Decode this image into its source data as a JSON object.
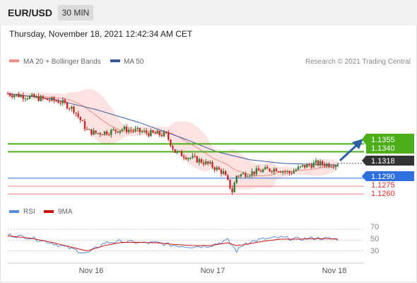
{
  "header": {
    "symbol": "EUR/USD",
    "timeframe": "30 MIN"
  },
  "timestamp": "Thursday, November 18, 2021 12:42:34 AM CET",
  "legend": [
    {
      "label": "MA 20 + Bollinger Bands",
      "color": "#f28b82"
    },
    {
      "label": "MA 50",
      "color": "#3a5a9a"
    }
  ],
  "copyright": "Research © 2021 Trading Central",
  "colors": {
    "resistance": "#4caf1a",
    "support": "#2f6fe0",
    "target": "#f08080",
    "current": "#333333",
    "up_candle": "#2e7d32",
    "down_candle": "#c62828",
    "arrow": "#2f5fa8",
    "rsi": "#5b8cd8",
    "ma9": "#cc1111",
    "band_fill": "#fde2e2"
  },
  "levels": [
    {
      "value": 1.1355,
      "label": "1.1355",
      "kind": "resistance"
    },
    {
      "value": 1.134,
      "label": "1.1340",
      "kind": "resistance"
    },
    {
      "value": 1.1318,
      "label": "1.1318",
      "kind": "current"
    },
    {
      "value": 1.129,
      "label": "1.1290",
      "kind": "support"
    },
    {
      "value": 1.1275,
      "label": "1.1275",
      "kind": "target"
    },
    {
      "value": 1.126,
      "label": "1.1260",
      "kind": "target"
    }
  ],
  "rsi_panel": {
    "legend": [
      {
        "label": "RSI",
        "color": "#5b8cd8"
      },
      {
        "label": "9MA",
        "color": "#cc1111"
      }
    ],
    "ticks": [
      "70",
      "50",
      "30"
    ]
  },
  "x_labels": [
    "Nov 16",
    "Nov 17",
    "Nov 18"
  ],
  "chart_data": {
    "type": "candlestick",
    "symbol": "EUR/USD",
    "timeframe": "30 MIN",
    "ylim": [
      1.1255,
      1.1488
    ],
    "x_ticks": [
      "Nov 16",
      "Nov 17",
      "Nov 18"
    ],
    "price_path": [
      [
        0,
        1.145
      ],
      [
        8,
        1.1445
      ],
      [
        16,
        1.144
      ],
      [
        24,
        1.1435
      ],
      [
        30,
        1.142
      ],
      [
        36,
        1.138
      ],
      [
        40,
        1.1375
      ],
      [
        46,
        1.1378
      ],
      [
        52,
        1.1383
      ],
      [
        58,
        1.138
      ],
      [
        64,
        1.1375
      ],
      [
        72,
        1.1372
      ],
      [
        76,
        1.134
      ],
      [
        82,
        1.133
      ],
      [
        88,
        1.1322
      ],
      [
        92,
        1.1315
      ],
      [
        98,
        1.13
      ],
      [
        102,
        1.1265
      ],
      [
        104,
        1.1295
      ],
      [
        110,
        1.13
      ],
      [
        116,
        1.1305
      ],
      [
        122,
        1.1308
      ],
      [
        128,
        1.13
      ],
      [
        134,
        1.1312
      ],
      [
        140,
        1.1318
      ],
      [
        146,
        1.1316
      ],
      [
        150,
        1.1318
      ]
    ],
    "ma50": [
      [
        0,
        1.145
      ],
      [
        20,
        1.144
      ],
      [
        40,
        1.142
      ],
      [
        60,
        1.1395
      ],
      [
        80,
        1.1365
      ],
      [
        95,
        1.134
      ],
      [
        110,
        1.1325
      ],
      [
        125,
        1.1318
      ],
      [
        150,
        1.1315
      ]
    ],
    "rsi_ylim": [
      15,
      85
    ],
    "rsi_ticks": [
      70,
      50,
      30
    ],
    "rsi": [
      [
        0,
        60
      ],
      [
        10,
        55
      ],
      [
        20,
        45
      ],
      [
        28,
        35
      ],
      [
        36,
        25
      ],
      [
        44,
        45
      ],
      [
        52,
        48
      ],
      [
        60,
        45
      ],
      [
        68,
        45
      ],
      [
        76,
        40
      ],
      [
        84,
        38
      ],
      [
        92,
        40
      ],
      [
        100,
        50
      ],
      [
        104,
        30
      ],
      [
        108,
        45
      ],
      [
        116,
        52
      ],
      [
        124,
        55
      ],
      [
        132,
        52
      ],
      [
        140,
        54
      ],
      [
        150,
        52
      ]
    ],
    "ma9": [
      [
        0,
        58
      ],
      [
        10,
        54
      ],
      [
        20,
        46
      ],
      [
        28,
        38
      ],
      [
        36,
        30
      ],
      [
        44,
        40
      ],
      [
        52,
        46
      ],
      [
        60,
        46
      ],
      [
        68,
        45
      ],
      [
        76,
        42
      ],
      [
        84,
        40
      ],
      [
        92,
        40
      ],
      [
        100,
        45
      ],
      [
        104,
        40
      ],
      [
        108,
        42
      ],
      [
        116,
        48
      ],
      [
        124,
        52
      ],
      [
        132,
        52
      ],
      [
        140,
        53
      ],
      [
        150,
        52
      ]
    ]
  }
}
